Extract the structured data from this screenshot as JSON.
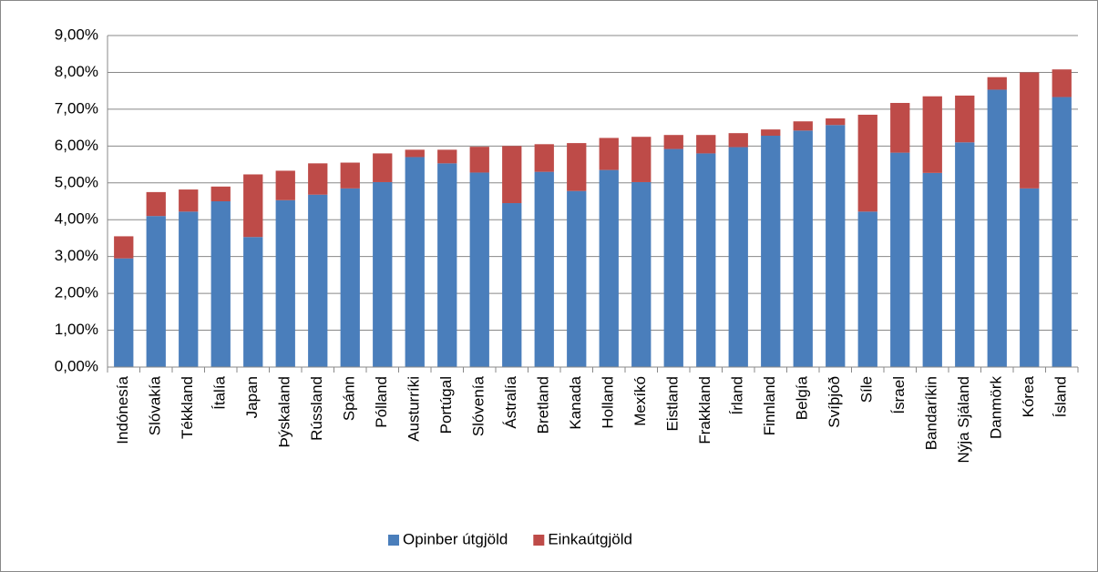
{
  "chart_data": {
    "type": "stacked_bar",
    "categories": [
      "Indónesía",
      "Slóvakía",
      "Tékkland",
      "Ítalía",
      "Japan",
      "Þýskaland",
      "Rússland",
      "Spánn",
      "Pólland",
      "Austurríki",
      "Portúgal",
      "Slóvenía",
      "Ástralía",
      "Bretland",
      "Kanada",
      "Holland",
      "Mexíkó",
      "Eistland",
      "Frakkland",
      "Írland",
      "Finnland",
      "Belgía",
      "Svíþjóð",
      "Síle",
      "Ísrael",
      "Bandaríkin",
      "Nýja Sjáland",
      "Danmörk",
      "Kórea",
      "Ísland"
    ],
    "series": [
      {
        "name": "Opinber útgjöld",
        "color": "#4a7ebb",
        "values": [
          2.95,
          4.1,
          4.22,
          4.5,
          3.53,
          4.53,
          4.68,
          4.85,
          5.02,
          5.7,
          5.53,
          5.28,
          4.45,
          5.3,
          4.78,
          5.35,
          5.02,
          5.92,
          5.8,
          5.97,
          6.28,
          6.42,
          6.57,
          4.22,
          5.82,
          5.27,
          6.1,
          7.53,
          4.85,
          7.33
        ]
      },
      {
        "name": "Einkaútgjöld",
        "color": "#be4b48",
        "values": [
          0.6,
          0.65,
          0.6,
          0.4,
          1.7,
          0.8,
          0.85,
          0.7,
          0.78,
          0.2,
          0.37,
          0.7,
          1.55,
          0.75,
          1.3,
          0.87,
          1.23,
          0.38,
          0.5,
          0.38,
          0.17,
          0.25,
          0.18,
          2.63,
          1.35,
          2.08,
          1.27,
          0.34,
          3.15,
          0.75
        ]
      }
    ],
    "ylim": [
      0,
      9
    ],
    "yticks": [
      {
        "value": 0,
        "label": "0,00%"
      },
      {
        "value": 1,
        "label": "1,00%"
      },
      {
        "value": 2,
        "label": "2,00%"
      },
      {
        "value": 3,
        "label": "3,00%"
      },
      {
        "value": 4,
        "label": "4,00%"
      },
      {
        "value": 5,
        "label": "5,00%"
      },
      {
        "value": 6,
        "label": "6,00%"
      },
      {
        "value": 7,
        "label": "7,00%"
      },
      {
        "value": 8,
        "label": "8,00%"
      },
      {
        "value": 9,
        "label": "9,00%"
      }
    ],
    "grid": true,
    "legend": "bottom"
  }
}
